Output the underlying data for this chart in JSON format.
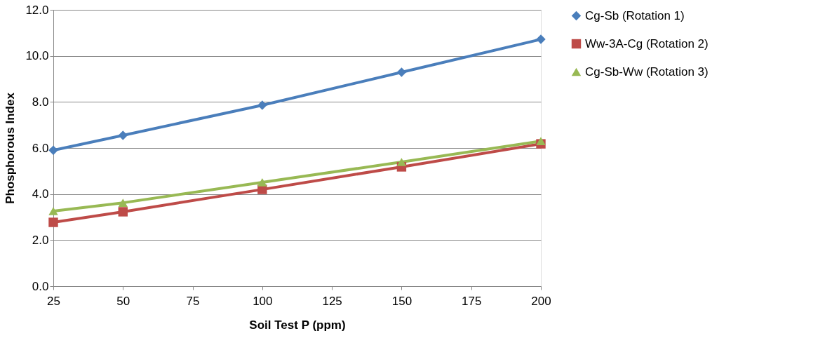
{
  "chart_data": {
    "type": "line",
    "xlabel": "Soil Test P (ppm)",
    "ylabel": "Phosphorous Index",
    "x": [
      25,
      50,
      100,
      150,
      200
    ],
    "series": [
      {
        "name": "Cg-Sb (Rotation 1)",
        "color": "#4a7ebb",
        "marker": "diamond",
        "values": [
          5.9,
          6.55,
          7.86,
          9.29,
          10.72
        ]
      },
      {
        "name": "Ww-3A-Cg (Rotation 2)",
        "color": "#be4b48",
        "marker": "square",
        "values": [
          2.77,
          3.23,
          4.2,
          5.18,
          6.18
        ]
      },
      {
        "name": "Cg-Sb-Ww (Rotation 3)",
        "color": "#98b954",
        "marker": "triangle",
        "values": [
          3.26,
          3.62,
          4.51,
          5.39,
          6.3
        ]
      }
    ],
    "xlim": [
      25,
      200
    ],
    "xticks": [
      25,
      50,
      75,
      100,
      125,
      150,
      175,
      200
    ],
    "ylim": [
      0,
      12
    ],
    "yticks": [
      {
        "value": 0,
        "label": "0.0"
      },
      {
        "value": 2,
        "label": "2.0"
      },
      {
        "value": 4,
        "label": "4.0"
      },
      {
        "value": 6,
        "label": "6.0"
      },
      {
        "value": 8,
        "label": "8.0"
      },
      {
        "value": 10,
        "label": "10.0"
      },
      {
        "value": 12,
        "label": "12.0"
      }
    ],
    "grid": "y",
    "legend": "right",
    "line_style": "solid"
  }
}
